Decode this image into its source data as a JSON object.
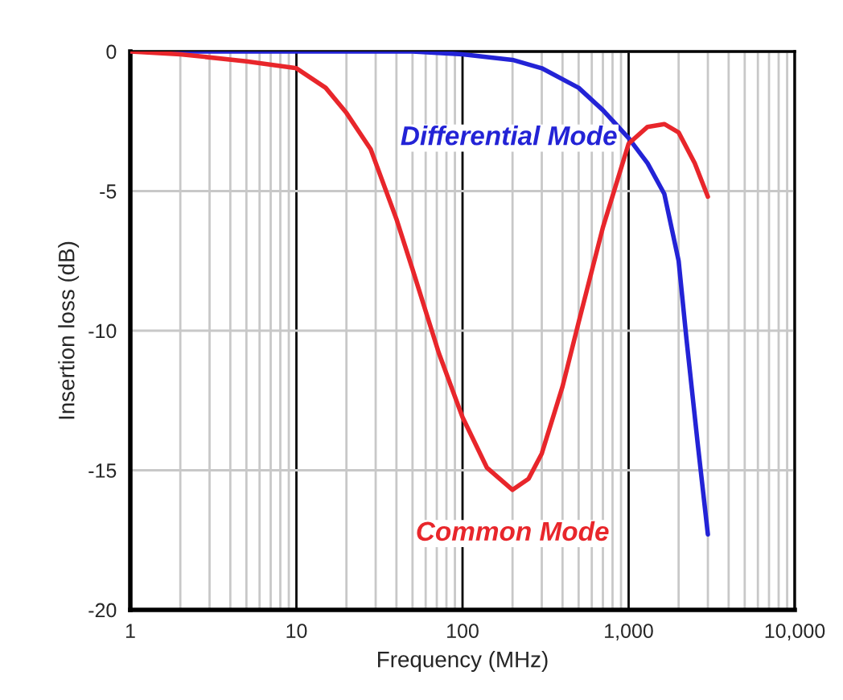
{
  "chart_data": {
    "type": "line",
    "xlabel": "Frequency (MHz)",
    "ylabel": "Insertion loss (dB)",
    "log": "x",
    "xlim": [
      1,
      10000
    ],
    "xticks": [
      1,
      10,
      100,
      {
        "value": 1000,
        "label": "1,000"
      },
      {
        "value": 10000,
        "label": "10,000"
      }
    ],
    "ylim": [
      -20,
      0
    ],
    "yticks": [
      -20,
      -15,
      -10,
      -5,
      0
    ],
    "grid": true,
    "marker": "none",
    "line_style": "solid",
    "series": [
      {
        "name": "Differential Mode",
        "color": "#2323d6",
        "x": [
          1,
          10,
          50,
          100,
          200,
          300,
          500,
          700,
          1000,
          1300,
          1640,
          2000,
          2230,
          2600,
          3000
        ],
        "values": [
          0,
          0,
          0,
          -0.1,
          -0.3,
          -0.6,
          -1.3,
          -2.1,
          -3.1,
          -4,
          -5.1,
          -7.5,
          -10.3,
          -14,
          -17.3
        ]
      },
      {
        "name": "Common Mode",
        "color": "#e8262b",
        "x": [
          1,
          2,
          5,
          10,
          15,
          20,
          28,
          40,
          50,
          72,
          100,
          140,
          200,
          250,
          300,
          400,
          500,
          700,
          1000,
          1300,
          1640,
          2000,
          2500,
          3000
        ],
        "values": [
          0,
          -0.1,
          -0.35,
          -0.6,
          -1.3,
          -2.2,
          -3.5,
          -6,
          -7.8,
          -10.8,
          -13.1,
          -14.9,
          -15.7,
          -15.3,
          -14.4,
          -12,
          -9.7,
          -6.3,
          -3.3,
          -2.7,
          -2.6,
          -2.9,
          -4,
          -5.2
        ]
      }
    ]
  }
}
